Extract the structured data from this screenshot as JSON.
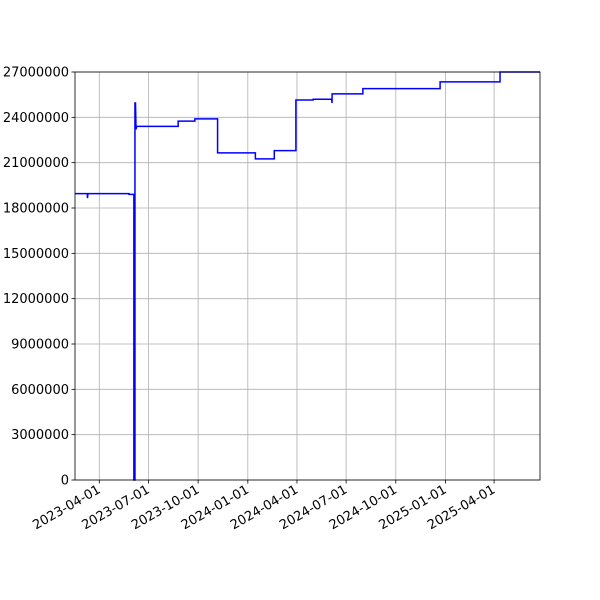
{
  "chart_data": {
    "type": "line",
    "title": "",
    "xlabel": "",
    "ylabel": "",
    "grid": true,
    "legend": "none",
    "x_axis": {
      "type": "date",
      "range": [
        "2023-02-15",
        "2025-06-25"
      ],
      "ticks": [
        "2023-04-01",
        "2023-07-01",
        "2023-10-01",
        "2024-01-01",
        "2024-04-01",
        "2024-07-01",
        "2024-10-01",
        "2025-01-01",
        "2025-04-01"
      ]
    },
    "y_axis": {
      "range": [
        0,
        27000000
      ],
      "ticks": [
        0,
        3000000,
        6000000,
        9000000,
        12000000,
        15000000,
        18000000,
        21000000,
        24000000,
        27000000
      ]
    },
    "series": [
      {
        "color": "#0000ff",
        "points": [
          [
            "2023-02-15",
            18950000
          ],
          [
            "2023-03-10",
            18950000
          ],
          [
            "2023-03-10",
            18650000
          ],
          [
            "2023-03-11",
            18950000
          ],
          [
            "2023-05-26",
            18950000
          ],
          [
            "2023-05-26",
            18900000
          ],
          [
            "2023-06-04",
            18900000
          ],
          [
            "2023-06-04",
            0
          ],
          [
            "2023-06-06",
            0
          ],
          [
            "2023-06-06",
            24950000
          ],
          [
            "2023-06-07",
            24950000
          ],
          [
            "2023-06-08",
            23200000
          ],
          [
            "2023-06-09",
            23400000
          ],
          [
            "2023-08-25",
            23400000
          ],
          [
            "2023-08-25",
            23750000
          ],
          [
            "2023-09-25",
            23750000
          ],
          [
            "2023-09-25",
            23900000
          ],
          [
            "2023-11-06",
            23900000
          ],
          [
            "2023-11-06",
            21650000
          ],
          [
            "2024-01-15",
            21650000
          ],
          [
            "2024-01-15",
            21250000
          ],
          [
            "2024-02-19",
            21250000
          ],
          [
            "2024-02-19",
            21800000
          ],
          [
            "2024-03-30",
            21800000
          ],
          [
            "2024-03-30",
            25150000
          ],
          [
            "2024-05-01",
            25150000
          ],
          [
            "2024-05-01",
            25200000
          ],
          [
            "2024-06-04",
            25200000
          ],
          [
            "2024-06-05",
            24950000
          ],
          [
            "2024-06-05",
            25550000
          ],
          [
            "2024-08-01",
            25550000
          ],
          [
            "2024-08-01",
            25900000
          ],
          [
            "2024-12-22",
            25900000
          ],
          [
            "2024-12-22",
            26350000
          ],
          [
            "2025-04-12",
            26350000
          ],
          [
            "2025-04-12",
            27000000
          ],
          [
            "2025-06-25",
            27000000
          ]
        ]
      }
    ]
  }
}
